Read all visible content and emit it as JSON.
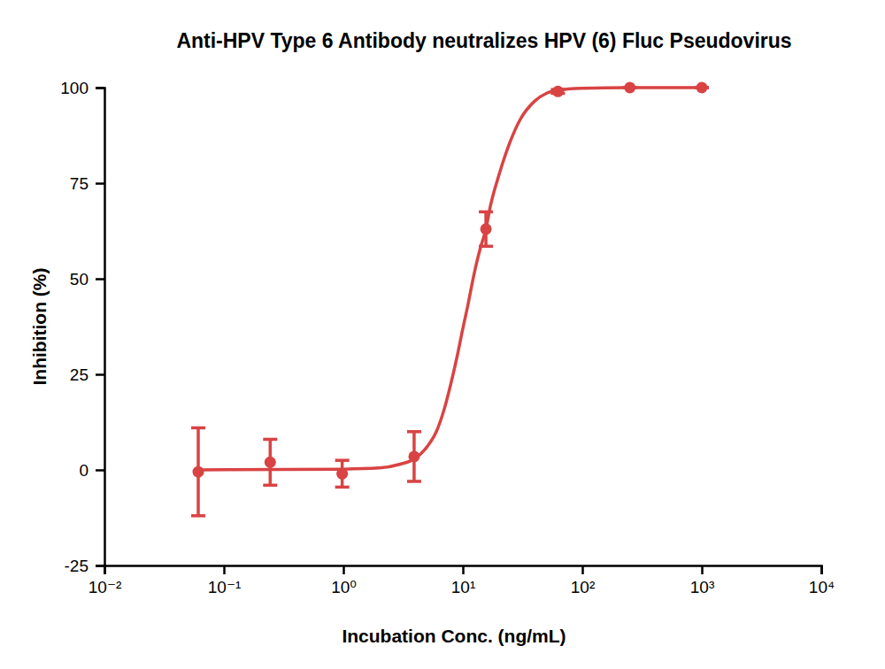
{
  "chart_data": {
    "type": "scatter",
    "title": "Anti-HPV Type 6 Antibody neutralizes HPV (6) Fluc Pseudovirus",
    "x_label": "Incubation Conc. (ng/mL)",
    "y_label": "Inhibition (%)",
    "log": "x",
    "xlim": [
      0.01,
      10000
    ],
    "ylim": [
      -25,
      100
    ],
    "xticks": [
      {
        "value": 0.01,
        "label": "10⁻²"
      },
      {
        "value": 0.1,
        "label": "10⁻¹"
      },
      {
        "value": 1,
        "label": "10⁰"
      },
      {
        "value": 10,
        "label": "10¹"
      },
      {
        "value": 100,
        "label": "10²"
      },
      {
        "value": 1000,
        "label": "10³"
      },
      {
        "value": 10000,
        "label": "10⁴"
      }
    ],
    "yticks": [
      -25,
      0,
      25,
      50,
      75,
      100
    ],
    "grid": false,
    "series": [
      {
        "type": "scatter",
        "color": "#d94343",
        "marker": "circle",
        "x": [
          0.061,
          0.244,
          0.977,
          3.91,
          15.6,
          62.5,
          250,
          1000
        ],
        "values": [
          -0.5,
          2,
          -1,
          3.5,
          63,
          99,
          100,
          100
        ],
        "errors": [
          11.5,
          6,
          3.5,
          6.5,
          4.5,
          0.5,
          0,
          0
        ]
      },
      {
        "type": "line",
        "color": "#d94343",
        "line_style": "solid",
        "x": [
          0.061,
          1,
          2,
          3,
          4,
          5,
          6,
          7,
          8,
          9,
          10,
          11,
          12,
          13,
          14,
          15.6,
          17,
          20,
          25,
          30,
          40,
          50,
          62.5,
          100,
          250,
          1000
        ],
        "values": [
          0,
          0.2,
          0.5,
          1.5,
          3,
          6,
          10,
          16,
          23,
          30,
          37,
          43,
          49,
          54,
          58,
          63,
          69,
          77,
          86,
          91.5,
          96.5,
          98.5,
          99.3,
          99.8,
          100,
          100
        ]
      }
    ]
  }
}
